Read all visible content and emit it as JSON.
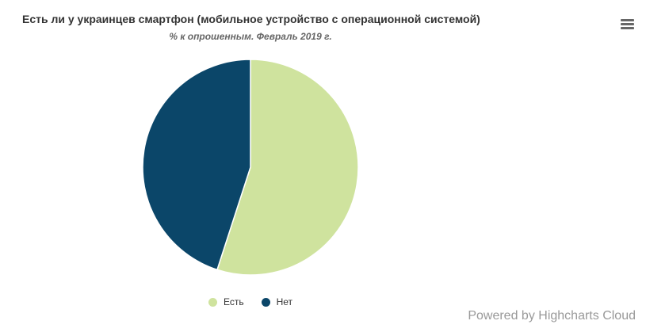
{
  "header": {
    "title": "Есть ли у украинцев смартфон (мобильное устройство с операционной системой)",
    "subtitle": "% к опрошенным. Февраль 2019 г."
  },
  "menu": {
    "icon": "hamburger-menu-icon"
  },
  "credits": {
    "text": "Powered by Highcharts Cloud"
  },
  "chart_data": {
    "type": "pie",
    "title": "Есть ли у украинцев смартфон (мобильное устройство с операционной системой)",
    "subtitle": "% к опрошенным. Февраль 2019 г.",
    "legend_position": "bottom-center",
    "series": [
      {
        "data": [
          {
            "name": "Есть",
            "value": 55,
            "color": "#cfe39e"
          },
          {
            "name": "Нет",
            "value": 45,
            "color": "#0b4669"
          }
        ]
      }
    ]
  }
}
